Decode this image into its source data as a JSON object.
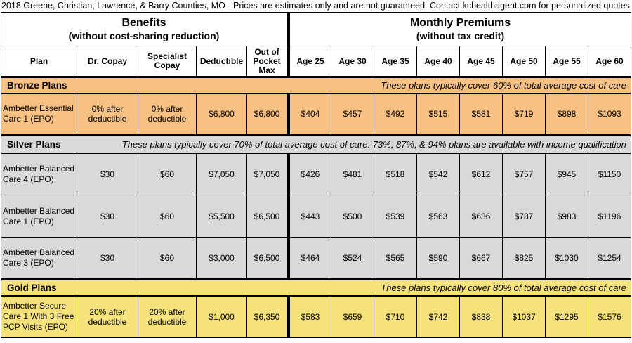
{
  "title": "2018 Greene, Christian, Lawrence, & Barry Counties, MO - Prices are estimates only and are not guaranteed.  Contact kchealthagent.com for personalized quotes.",
  "header": {
    "benefits_title": "Benefits",
    "benefits_subtitle": "(without cost-sharing reduction)",
    "premiums_title": "Monthly Premiums",
    "premiums_subtitle": "(without tax credit)"
  },
  "columns": {
    "plan": "Plan",
    "dr_copay": "Dr. Copay",
    "specialist_copay": "Specialist Copay",
    "deductible": "Deductible",
    "out_of_pocket_max": "Out of Pocket Max",
    "ages": [
      "Age 25",
      "Age 30",
      "Age 35",
      "Age 40",
      "Age 45",
      "Age 50",
      "Age 55",
      "Age 60"
    ]
  },
  "colors": {
    "bronze": "#F7C183",
    "silver": "#D9D9D9",
    "gold": "#F5E27D",
    "border": "#000000"
  },
  "sections": [
    {
      "label": "Bronze Plans",
      "description": "These plans typically cover 60% of total average cost of care",
      "plans": [
        {
          "name": "Ambetter Essential Care 1 (EPO)",
          "benefits": [
            "0% after deductible",
            "0% after deductible",
            "$6,800",
            "$6,800"
          ],
          "premiums": [
            "$404",
            "$457",
            "$492",
            "$515",
            "$581",
            "$719",
            "$898",
            "$1093"
          ]
        }
      ]
    },
    {
      "label": "Silver Plans",
      "description": "These plans typically cover 70% of total average cost of care.  73%, 87%, & 94% plans are available with income qualification",
      "plans": [
        {
          "name": "Ambetter Balanced Care 4 (EPO)",
          "benefits": [
            "$30",
            "$60",
            "$7,050",
            "$7,050"
          ],
          "premiums": [
            "$426",
            "$481",
            "$518",
            "$542",
            "$612",
            "$757",
            "$945",
            "$1150"
          ]
        },
        {
          "name": "Ambetter Balanced Care 1 (EPO)",
          "benefits": [
            "$30",
            "$60",
            "$5,500",
            "$6,500"
          ],
          "premiums": [
            "$443",
            "$500",
            "$539",
            "$563",
            "$636",
            "$787",
            "$983",
            "$1196"
          ]
        },
        {
          "name": "Ambetter Balanced Care 3 (EPO)",
          "benefits": [
            "$30",
            "$60",
            "$3,000",
            "$6,500"
          ],
          "premiums": [
            "$464",
            "$524",
            "$565",
            "$590",
            "$667",
            "$825",
            "$1030",
            "$1254"
          ]
        }
      ]
    },
    {
      "label": "Gold Plans",
      "description": "These plans typically cover 80% of total average cost of care",
      "plans": [
        {
          "name": "Ambetter Secure Care 1 With 3 Free PCP Visits (EPO)",
          "benefits": [
            "20% after deductible",
            "20% after deductible",
            "$1,000",
            "$6,350"
          ],
          "premiums": [
            "$583",
            "$659",
            "$710",
            "$742",
            "$838",
            "$1037",
            "$1295",
            "$1576"
          ]
        }
      ]
    }
  ]
}
